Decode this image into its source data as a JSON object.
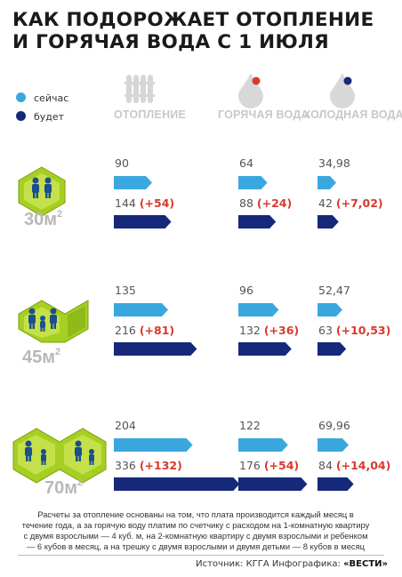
{
  "title_line1": "КАК ПОДОРОЖАЕТ ОТОПЛЕНИЕ",
  "title_line2": "И ГОРЯЧАЯ ВОДА С 1 ИЮЛЯ",
  "legend": [
    {
      "label": "сейчас",
      "color": "#3aa8df"
    },
    {
      "label": "будет",
      "color": "#15287a"
    }
  ],
  "columns": [
    {
      "label": "ОТОПЛЕНИЕ",
      "icon": "radiator-icon"
    },
    {
      "label": "ГОРЯЧАЯ ВОДА",
      "icon": "hot-water-drop-icon"
    },
    {
      "label": "ХОЛОДНАЯ ВОДА",
      "icon": "cold-water-drop-icon"
    }
  ],
  "colors": {
    "now": "#3aa8df",
    "future": "#15287a",
    "delta": "#d9392c",
    "hex": "#9ccc1e",
    "people": "#1e4e8c"
  },
  "chart_data": {
    "type": "bar",
    "groups": [
      {
        "area": "30м",
        "area_sup": "2",
        "cells": [
          {
            "now": "90",
            "future": "144",
            "delta": "(+54)"
          },
          {
            "now": "64",
            "future": "88",
            "delta": "(+24)"
          },
          {
            "now": "34,98",
            "future": "42",
            "delta": "(+7,02)"
          }
        ]
      },
      {
        "area": "45м",
        "area_sup": "2",
        "cells": [
          {
            "now": "135",
            "future": "216",
            "delta": "(+81)"
          },
          {
            "now": "96",
            "future": "132",
            "delta": "(+36)"
          },
          {
            "now": "52,47",
            "future": "63",
            "delta": "(+10,53)"
          }
        ]
      },
      {
        "area": "70м",
        "area_sup": "2",
        "cells": [
          {
            "now": "204",
            "future": "336",
            "delta": "(+132)"
          },
          {
            "now": "122",
            "future": "176",
            "delta": "(+54)"
          },
          {
            "now": "69,96",
            "future": "84",
            "delta": "(+14,04)"
          }
        ]
      }
    ]
  },
  "note_lines": [
    "Расчеты за отопление основаны на том, что плата производится каждый месяц в",
    "течение года, а за горячую воду платим по счетчику с расходом на 1-комнатную квартиру",
    "с двумя взрослыми — 4 куб. м, на 2-комнатную квартиру с двумя взрослыми и ребенком",
    "— 6 кубов в месяц, а на трешку с двумя взрослыми и двумя детьми — 8 кубов в месяц"
  ],
  "source_prefix": "Источник: КГГА Инфографика:",
  "source_brand": "«ВЕСТИ»"
}
